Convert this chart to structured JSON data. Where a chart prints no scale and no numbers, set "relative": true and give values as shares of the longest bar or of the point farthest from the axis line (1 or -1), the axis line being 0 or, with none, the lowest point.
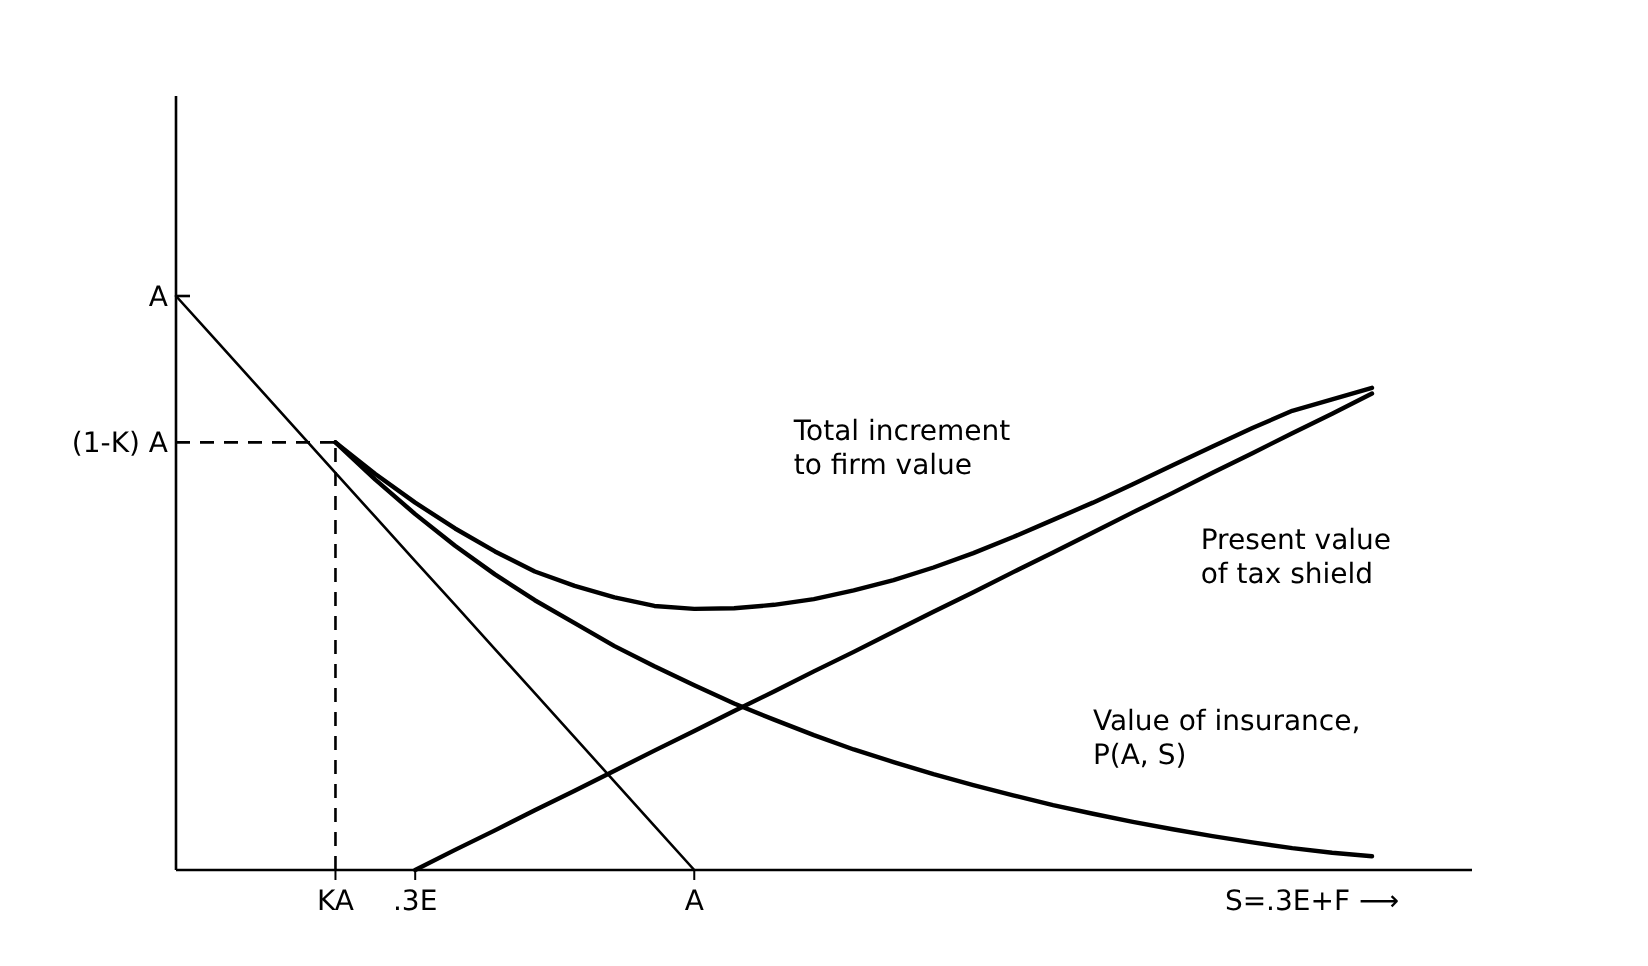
{
  "chart_data": {
    "type": "line",
    "relative": true,
    "xlabel": "S=.3E+F ⟶",
    "categories": [
      null,
      null,
      null,
      null,
      "KA",
      null,
      ".3E",
      null,
      null,
      null,
      null,
      null,
      null,
      "A",
      null,
      null,
      null,
      null,
      null,
      null,
      null,
      null,
      null,
      null,
      null,
      null,
      null,
      null,
      null,
      null,
      null
    ],
    "ref_lines": [
      {
        "axis": "y",
        "value": 1,
        "label": "A",
        "line_style": "solid",
        "color": "#000000"
      },
      {
        "axis": "y",
        "value": 0.745,
        "label": "(1-K) A",
        "line_style": "dashed",
        "color": "#000000"
      },
      {
        "axis": "x",
        "value": "KA",
        "line_style": "dashed",
        "color": "#000000"
      }
    ],
    "marker": "none",
    "grid": false,
    "series": [
      {
        "name": "Total increment\nto firm value",
        "color": "#000000",
        "values": [
          null,
          null,
          null,
          null,
          0.745,
          0.69,
          0.64,
          0.595,
          0.555,
          0.52,
          0.495,
          0.475,
          0.46,
          0.455,
          0.456,
          0.462,
          0.472,
          0.487,
          0.505,
          0.527,
          0.552,
          0.58,
          0.61,
          0.64,
          0.672,
          0.705,
          0.738,
          0.77,
          0.8,
          0.82,
          0.84
        ]
      },
      {
        "name": "Present value\nof tax shield",
        "color": "#000000",
        "values": [
          null,
          null,
          null,
          null,
          null,
          null,
          0,
          0.035,
          0.069,
          0.104,
          0.138,
          0.173,
          0.208,
          0.242,
          0.277,
          0.311,
          0.346,
          0.38,
          0.415,
          0.45,
          0.484,
          0.519,
          0.553,
          0.588,
          0.623,
          0.657,
          0.692,
          0.726,
          0.761,
          0.795,
          0.83
        ]
      },
      {
        "name": "Value of insurance,\nP(A, S)",
        "color": "#000000",
        "values": [
          null,
          null,
          null,
          null,
          0.745,
          0.68,
          0.62,
          0.565,
          0.515,
          0.47,
          0.43,
          0.39,
          0.355,
          0.322,
          0.29,
          0.262,
          0.235,
          0.21,
          0.188,
          0.167,
          0.148,
          0.13,
          0.113,
          0.098,
          0.084,
          0.071,
          0.059,
          0.048,
          0.038,
          0.03,
          0.024
        ]
      },
      {
        "color": "#000000",
        "values": [
          1,
          0.923,
          0.846,
          0.769,
          0.692,
          0.615,
          0.538,
          0.462,
          0.385,
          0.308,
          0.231,
          0.154,
          0.077,
          0,
          null,
          null,
          null,
          null,
          null,
          null,
          null,
          null,
          null,
          null,
          null,
          null,
          null,
          null,
          null,
          null,
          null
        ]
      }
    ]
  }
}
